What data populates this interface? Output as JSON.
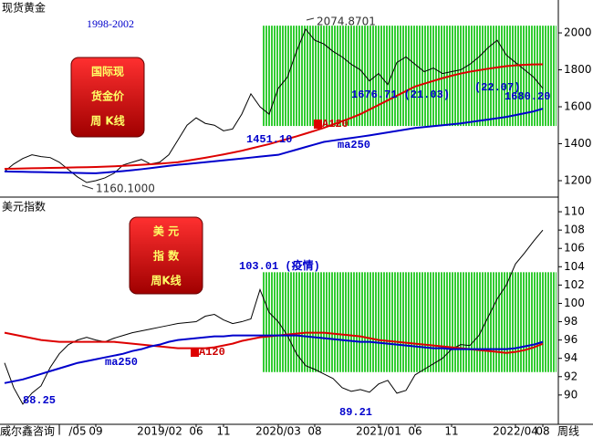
{
  "chart_data": [
    {
      "type": "line",
      "title": "现货黄金",
      "ylim": [
        1116,
        2178
      ],
      "yticks": [
        1200,
        1400,
        1600,
        1800,
        2000
      ],
      "highlight": [
        1496,
        2039
      ],
      "highlight_color": "#33cc33",
      "series": [
        {
          "color": "#000000",
          "values": [
            1250,
            1290,
            1320,
            1340,
            1330,
            1325,
            1300,
            1260,
            1220,
            1190,
            1200,
            1215,
            1240,
            1285,
            1300,
            1315,
            1290,
            1300,
            1340,
            1420,
            1500,
            1540,
            1510,
            1500,
            1470,
            1480,
            1560,
            1670,
            1600,
            1560,
            1700,
            1760,
            1900,
            2020,
            1960,
            1940,
            1900,
            1870,
            1830,
            1800,
            1740,
            1780,
            1720,
            1840,
            1870,
            1830,
            1790,
            1810,
            1780,
            1790,
            1800,
            1830,
            1870,
            1920,
            1960,
            1880,
            1840,
            1800,
            1760,
            1700
          ]
        },
        {
          "name": "A120",
          "color": "#dd0000",
          "values": [
            1264,
            1265,
            1266,
            1267,
            1268,
            1269,
            1270,
            1271,
            1272,
            1273,
            1274,
            1276,
            1278,
            1280,
            1283,
            1286,
            1289,
            1292,
            1296,
            1300,
            1308,
            1316,
            1324,
            1333,
            1342,
            1352,
            1362,
            1374,
            1386,
            1398,
            1412,
            1426,
            1440,
            1455,
            1470,
            1486,
            1504,
            1522,
            1540,
            1560,
            1585,
            1610,
            1635,
            1660,
            1685,
            1710,
            1725,
            1740,
            1755,
            1768,
            1780,
            1790,
            1798,
            1806,
            1813,
            1820,
            1824,
            1827,
            1829,
            1830
          ]
        },
        {
          "name": "ma250",
          "color": "#0000cc",
          "values": [
            1250,
            1249,
            1248,
            1247,
            1246,
            1245,
            1244,
            1243,
            1242,
            1241,
            1240,
            1244,
            1248,
            1252,
            1257,
            1262,
            1268,
            1274,
            1280,
            1286,
            1290,
            1295,
            1300,
            1305,
            1310,
            1315,
            1320,
            1325,
            1330,
            1335,
            1340,
            1354,
            1368,
            1382,
            1396,
            1410,
            1417,
            1424,
            1431,
            1438,
            1445,
            1453,
            1461,
            1469,
            1477,
            1485,
            1490,
            1495,
            1500,
            1505,
            1510,
            1517,
            1524,
            1531,
            1538,
            1545,
            1555,
            1565,
            1575,
            1590
          ]
        }
      ],
      "annotations": [
        "1998-2002",
        "2074.8701",
        "1160.1000",
        "1451.10",
        "1676.71 (21.03)",
        "(22.07)",
        "1680.20"
      ],
      "badge": [
        "国际现",
        "货金价",
        "周 K线"
      ]
    },
    {
      "type": "line",
      "title": "美元指数",
      "ylim": [
        86.8,
        111.4
      ],
      "yticks": [
        90,
        92,
        94,
        96,
        98,
        100,
        102,
        104,
        106,
        108,
        110
      ],
      "highlight": [
        92.5,
        103.4
      ],
      "highlight_color": "#33cc33",
      "categories": [
        null,
        null,
        null,
        null,
        null,
        null,
        "l",
        null,
        "/05",
        null,
        "09",
        null,
        null,
        null,
        null,
        null,
        null,
        "2019/02",
        null,
        null,
        null,
        "06",
        null,
        null,
        "11",
        null,
        null,
        null,
        null,
        null,
        "2020/03",
        null,
        null,
        null,
        "08",
        null,
        null,
        null,
        null,
        null,
        null,
        "2021/01",
        null,
        null,
        null,
        "06",
        null,
        null,
        null,
        "11",
        null,
        null,
        null,
        null,
        null,
        null,
        "2022/04",
        null,
        null,
        "08"
      ],
      "series": [
        {
          "color": "#000000",
          "values": [
            93.5,
            90.8,
            89.0,
            90.2,
            91.0,
            93.0,
            94.5,
            95.5,
            96.0,
            96.3,
            96.0,
            95.8,
            96.2,
            96.5,
            96.8,
            97.0,
            97.2,
            97.4,
            97.6,
            97.8,
            97.9,
            98.0,
            98.6,
            98.8,
            98.2,
            97.8,
            98.0,
            98.3,
            101.5,
            99.0,
            98.0,
            96.5,
            94.5,
            93.2,
            92.8,
            92.3,
            91.8,
            90.8,
            90.4,
            90.6,
            90.3,
            91.2,
            91.6,
            90.2,
            90.5,
            92.2,
            92.8,
            93.4,
            94.0,
            95.0,
            95.5,
            95.4,
            96.5,
            98.5,
            100.5,
            102.0,
            104.3,
            105.5,
            106.8,
            108.0
          ]
        },
        {
          "name": "A120",
          "color": "#dd0000",
          "values": [
            96.8,
            96.6,
            96.4,
            96.2,
            96.0,
            95.9,
            95.8,
            95.8,
            95.8,
            95.8,
            95.8,
            95.8,
            95.8,
            95.7,
            95.6,
            95.5,
            95.4,
            95.3,
            95.2,
            95.1,
            95.1,
            95.1,
            95.1,
            95.2,
            95.4,
            95.6,
            95.9,
            96.1,
            96.3,
            96.4,
            96.5,
            96.6,
            96.7,
            96.8,
            96.8,
            96.8,
            96.7,
            96.6,
            96.5,
            96.4,
            96.2,
            96.0,
            95.9,
            95.8,
            95.7,
            95.6,
            95.5,
            95.4,
            95.3,
            95.2,
            95.1,
            95.0,
            94.9,
            94.8,
            94.7,
            94.6,
            94.7,
            94.9,
            95.2,
            95.6
          ]
        },
        {
          "name": "ma250",
          "color": "#0000cc",
          "values": [
            91.3,
            91.5,
            91.7,
            92.0,
            92.3,
            92.6,
            92.9,
            93.2,
            93.5,
            93.7,
            93.9,
            94.1,
            94.3,
            94.5,
            94.8,
            95.0,
            95.3,
            95.5,
            95.8,
            96.0,
            96.1,
            96.2,
            96.3,
            96.4,
            96.4,
            96.5,
            96.5,
            96.5,
            96.5,
            96.5,
            96.5,
            96.5,
            96.5,
            96.4,
            96.3,
            96.2,
            96.1,
            96.0,
            95.9,
            95.8,
            95.8,
            95.7,
            95.6,
            95.5,
            95.4,
            95.3,
            95.2,
            95.1,
            95.1,
            95.0,
            95.0,
            95.0,
            95.0,
            95.0,
            95.0,
            95.0,
            95.1,
            95.3,
            95.5,
            95.8
          ]
        }
      ],
      "annotations": [
        "103.01 (疫情)",
        "88.25",
        "89.21"
      ],
      "badge": [
        "美 元",
        "指 数",
        "周K线"
      ]
    }
  ],
  "footer": {
    "source": "威尔鑫咨询",
    "period": "周线"
  }
}
